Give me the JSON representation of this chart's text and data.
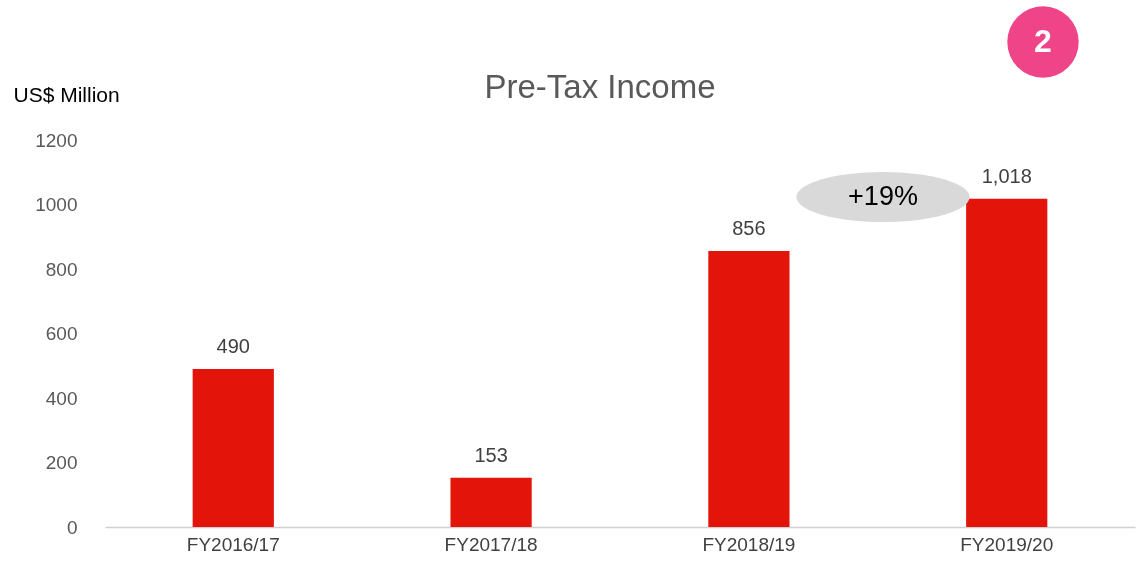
{
  "chart_data": {
    "type": "bar",
    "title": "Pre-Tax Income",
    "ylabel": "US$ Million",
    "categories": [
      "FY2016/17",
      "FY2017/18",
      "FY2018/19",
      "FY2019/20"
    ],
    "values": [
      490,
      153,
      856,
      1018
    ],
    "value_labels": [
      "490",
      "153",
      "856",
      "1,018"
    ],
    "color": "#e3140a",
    "ylim": [
      0,
      1200
    ],
    "yticks": [
      0,
      200,
      400,
      600,
      800,
      1000,
      1200
    ],
    "grid": false,
    "legend": false,
    "annotations": [
      "+19%",
      "2"
    ]
  }
}
